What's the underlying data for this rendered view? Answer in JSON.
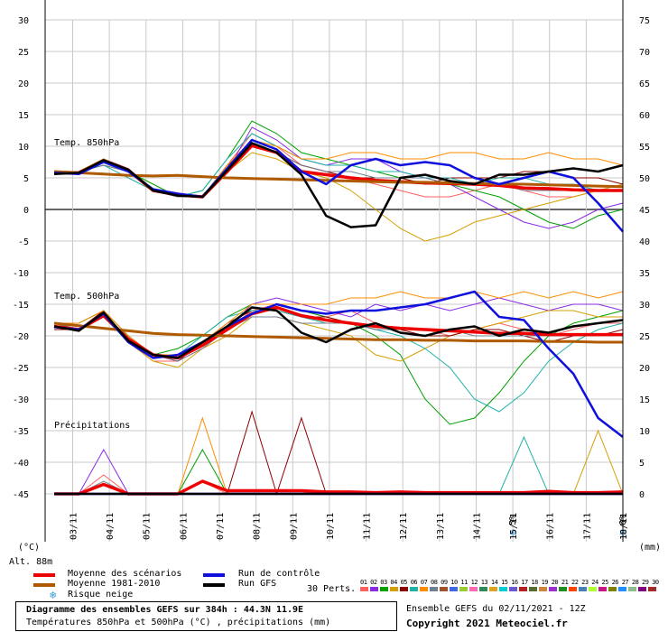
{
  "chart_data": {
    "type": "line",
    "title": "Diagramme des ensembles GEFS sur 384h : 44.3N 11.9E",
    "subtitle": "Températures 850hPa et 500hPa (°C) , précipitations (mm)",
    "left_axis_unit": "(°C)",
    "right_axis_unit": "(mm)",
    "altitude": "Alt. 88m",
    "ylim_left": [
      -45,
      30
    ],
    "ylim_right": [
      0,
      75
    ],
    "left_ticks": [
      "30",
      "25",
      "20",
      "15",
      "10",
      "5",
      "0",
      "-5",
      "-10",
      "-15",
      "-20",
      "-25",
      "-30",
      "-35",
      "-40",
      "-45"
    ],
    "right_ticks": [
      "75",
      "70",
      "65",
      "60",
      "55",
      "50",
      "45",
      "40",
      "35",
      "30",
      "25",
      "20",
      "15",
      "10",
      "5",
      "0"
    ],
    "x_labels": [
      "03/11",
      "04/11",
      "05/11",
      "06/11",
      "07/11",
      "08/11",
      "09/11",
      "10/11",
      "11/11",
      "12/11",
      "13/11",
      "14/11",
      "15/11",
      "16/11",
      "17/11",
      "18/11"
    ],
    "panel_labels": {
      "t850": "Temp. 850hPa",
      "t500": "Temp. 500hPa",
      "precip": "Précipitations"
    },
    "snow_markers": [
      {
        "label": "5%",
        "date": "15/11"
      },
      {
        "label": "6%",
        "date": "18/11"
      }
    ],
    "series": [
      {
        "name": "Moyenne des scénarios",
        "color": "#ee0000",
        "panel": "t850",
        "y": [
          5.9,
          5.8,
          7.6,
          6.2,
          3.0,
          2.3,
          2.0,
          6.0,
          10.1,
          9.0,
          6.0,
          5.5,
          5.0,
          4.6,
          4.4,
          4.2,
          4.1,
          4.0,
          3.8,
          3.4,
          3.3,
          3.1,
          3.0,
          3.0
        ]
      },
      {
        "name": "Moyenne 1981-2010",
        "color": "#b05a00",
        "panel": "t850",
        "y": [
          6.0,
          5.8,
          5.6,
          5.4,
          5.3,
          5.4,
          5.2,
          5.0,
          4.9,
          4.8,
          4.7,
          4.6,
          4.5,
          4.4,
          4.3,
          4.3,
          4.2,
          4.1,
          4.0,
          4.0,
          3.9,
          3.8,
          3.7,
          3.6
        ]
      },
      {
        "name": "Run de contrôle",
        "color": "#1010dd",
        "panel": "t850",
        "y": [
          5.8,
          5.6,
          7.5,
          6.0,
          3.2,
          2.5,
          2.0,
          6.5,
          11.0,
          9.5,
          6.0,
          4.0,
          7.0,
          8.0,
          7.0,
          7.5,
          7.0,
          5.0,
          4.0,
          5.0,
          6.0,
          5.0,
          1.0,
          -3.5
        ]
      },
      {
        "name": "Run GFS",
        "color": "#000000",
        "panel": "t850",
        "y": [
          5.6,
          5.8,
          7.8,
          6.3,
          3.0,
          2.2,
          2.0,
          6.2,
          10.5,
          9.0,
          5.5,
          -1.0,
          -2.8,
          -2.5,
          5.0,
          5.5,
          4.5,
          4.0,
          5.5,
          5.5,
          6.0,
          6.5,
          6.0,
          7.0
        ]
      },
      {
        "name": "Moyenne des scénarios",
        "color": "#ee0000",
        "panel": "t500",
        "y": [
          -18.5,
          -19.0,
          -16.8,
          -20.5,
          -23.0,
          -23.5,
          -21.5,
          -19.0,
          -16.5,
          -15.5,
          -16.8,
          -17.5,
          -18.0,
          -18.5,
          -18.8,
          -19.0,
          -19.2,
          -19.4,
          -19.6,
          -19.6,
          -19.8,
          -19.8,
          -19.8,
          -19.8
        ]
      },
      {
        "name": "Moyenne 1981-2010",
        "color": "#b05a00",
        "panel": "t500",
        "y": [
          -18.0,
          -18.4,
          -18.8,
          -19.2,
          -19.6,
          -19.8,
          -19.9,
          -20.0,
          -20.1,
          -20.2,
          -20.3,
          -20.4,
          -20.5,
          -20.6,
          -20.6,
          -20.7,
          -20.7,
          -20.8,
          -20.8,
          -20.8,
          -20.9,
          -20.9,
          -21.0,
          -21.0
        ]
      },
      {
        "name": "Run de contrôle",
        "color": "#1010dd",
        "panel": "t500",
        "y": [
          -18.6,
          -19.0,
          -16.5,
          -21.0,
          -23.5,
          -23.0,
          -21.0,
          -18.5,
          -16.5,
          -15.0,
          -16.0,
          -16.5,
          -16.0,
          -16.0,
          -15.5,
          -15.0,
          -14.0,
          -13.0,
          -17.0,
          -17.5,
          -22.0,
          -26.0,
          -33.0,
          -36.0
        ]
      },
      {
        "name": "Run GFS",
        "color": "#000000",
        "panel": "t500",
        "y": [
          -18.5,
          -19.2,
          -16.3,
          -20.8,
          -23.0,
          -23.5,
          -21.0,
          -18.5,
          -15.5,
          -16.0,
          -19.5,
          -21.0,
          -19.0,
          -18.0,
          -19.5,
          -20.0,
          -19.0,
          -18.5,
          -20.0,
          -19.0,
          -19.5,
          -18.5,
          -18.0,
          -17.5
        ]
      },
      {
        "name": "Moyenne des scénarios",
        "color": "#ee0000",
        "panel": "precip",
        "y": [
          0,
          0,
          1.5,
          0,
          0,
          0,
          2.0,
          0.5,
          0.5,
          0.5,
          0.5,
          0.3,
          0.3,
          0.2,
          0.3,
          0.2,
          0.2,
          0.2,
          0.2,
          0.2,
          0.4,
          0.2,
          0.2,
          0.3
        ]
      },
      {
        "name": "Run de contrôle",
        "color": "#1010dd",
        "panel": "precip",
        "y": [
          0,
          0,
          0,
          0,
          0,
          0,
          0,
          0,
          0,
          0,
          0,
          0,
          0,
          0,
          0,
          0,
          0,
          0,
          0,
          0,
          0,
          0,
          0,
          0
        ]
      },
      {
        "name": "Run GFS",
        "color": "#000000",
        "panel": "precip",
        "y": [
          0,
          0,
          0,
          0,
          0,
          0,
          0,
          0,
          0,
          0,
          0,
          0,
          0,
          0,
          0,
          0,
          0,
          0,
          0,
          0,
          0,
          0,
          0,
          0
        ]
      }
    ],
    "perturbation_members": [
      {
        "color": "#ff6060",
        "t850": [
          5.7,
          6,
          8,
          6.5,
          3,
          2,
          2,
          7,
          12,
          10,
          7,
          6,
          5,
          4,
          3,
          2,
          2,
          3,
          4,
          3,
          2,
          2,
          3,
          3
        ],
        "t500": [
          -18,
          -19,
          -16,
          -21,
          -24,
          -24,
          -22,
          -19,
          -16,
          -15,
          -16,
          -17,
          -16,
          -18,
          -19,
          -19,
          -20,
          -19,
          -18,
          -19,
          -20,
          -19,
          -18,
          -18
        ],
        "p": [
          0,
          0,
          3,
          0,
          0,
          0,
          2,
          0,
          0,
          0,
          0,
          0,
          0,
          0,
          0,
          0,
          0,
          0,
          0,
          0,
          0,
          0,
          0,
          0
        ]
      },
      {
        "color": "#8a2be2",
        "t850": [
          5.5,
          6,
          7,
          6,
          3,
          2,
          2,
          6,
          13,
          11,
          8,
          7,
          8,
          8,
          6,
          5,
          4,
          2,
          0,
          -2,
          -3,
          -2,
          0,
          1
        ],
        "t500": [
          -19,
          -19,
          -17,
          -21,
          -23,
          -24,
          -21,
          -19,
          -15,
          -14,
          -15,
          -16,
          -17,
          -15,
          -16,
          -15,
          -16,
          -15,
          -14,
          -15,
          -16,
          -15,
          -15,
          -16
        ],
        "p": [
          0,
          0,
          7,
          0,
          0,
          0,
          0,
          0,
          0,
          0,
          0,
          0,
          0,
          0,
          0,
          0,
          0,
          0,
          0,
          0,
          0,
          0,
          0,
          0
        ]
      },
      {
        "color": "#00a000",
        "t850": [
          6,
          6,
          8,
          6,
          4,
          2,
          3,
          8,
          14,
          12,
          9,
          8,
          7,
          6,
          5,
          4,
          4,
          3,
          2,
          0,
          -2,
          -3,
          -1,
          0
        ],
        "t500": [
          -18,
          -18,
          -16,
          -20,
          -23,
          -22,
          -20,
          -17,
          -15,
          -15,
          -16,
          -17,
          -18,
          -20,
          -23,
          -30,
          -34,
          -33,
          -29,
          -24,
          -20,
          -18,
          -17,
          -16
        ],
        "p": [
          0,
          0,
          0,
          0,
          0,
          0,
          7,
          0,
          0,
          0,
          0,
          0,
          0,
          0,
          0,
          0,
          0,
          0,
          0,
          0,
          0,
          0,
          0,
          0
        ]
      },
      {
        "color": "#d4a000",
        "t850": [
          6,
          6,
          7,
          6,
          3,
          2,
          2,
          6,
          9,
          8,
          6,
          5,
          3,
          0,
          -3,
          -5,
          -4,
          -2,
          -1,
          0,
          1,
          2,
          3,
          4
        ],
        "t500": [
          -18,
          -19,
          -17,
          -21,
          -24,
          -25,
          -22,
          -20,
          -17,
          -17,
          -18,
          -19,
          -20,
          -23,
          -24,
          -22,
          -20,
          -19,
          -18,
          -17,
          -16,
          -16,
          -17,
          -17
        ],
        "p": [
          0,
          0,
          0,
          0,
          0,
          0,
          0,
          0,
          0,
          0,
          0,
          0,
          0,
          0,
          0,
          0,
          0,
          0,
          0,
          0,
          0,
          0,
          10,
          0
        ]
      },
      {
        "color": "#8b0000",
        "t850": [
          5.8,
          6,
          8,
          6,
          3,
          2,
          2,
          7,
          10,
          9,
          7,
          6,
          5,
          5,
          5,
          4,
          5,
          5,
          5,
          6,
          6,
          5,
          5,
          4
        ],
        "t500": [
          -19,
          -19,
          -16,
          -21,
          -23,
          -24,
          -21,
          -18,
          -16,
          -16,
          -17,
          -17,
          -18,
          -19,
          -19,
          -20,
          -20,
          -19,
          -19,
          -20,
          -21,
          -20,
          -20,
          -19
        ],
        "p": [
          0,
          0,
          0,
          0,
          0,
          0,
          0,
          0,
          13,
          0,
          12,
          0,
          0,
          0,
          0,
          0,
          0,
          0,
          0,
          0,
          0,
          0,
          0,
          0
        ]
      },
      {
        "color": "#20b2aa",
        "t850": [
          5.9,
          6,
          7,
          5,
          3,
          2,
          3,
          8,
          12,
          10,
          8,
          7,
          7,
          6,
          6,
          5,
          5,
          4,
          5,
          5,
          4,
          4,
          3,
          3
        ],
        "t500": [
          -18,
          -19,
          -17,
          -20,
          -23,
          -23,
          -20,
          -17,
          -16,
          -16,
          -17,
          -18,
          -18,
          -19,
          -20,
          -22,
          -25,
          -30,
          -32,
          -29,
          -24,
          -21,
          -19,
          -18
        ],
        "p": [
          0,
          0,
          0,
          0,
          0,
          0,
          0,
          0,
          0,
          0,
          0,
          0,
          0,
          0,
          0,
          0,
          0,
          0,
          0,
          9,
          0,
          0,
          0,
          0
        ]
      },
      {
        "color": "#ff8c00",
        "t850": [
          6,
          6,
          8,
          6,
          3,
          2,
          2,
          7,
          11,
          10,
          8,
          8,
          9,
          9,
          8,
          8,
          9,
          9,
          8,
          8,
          9,
          8,
          8,
          7
        ],
        "t500": [
          -18,
          -18,
          -16,
          -20,
          -23,
          -23,
          -21,
          -18,
          -15,
          -15,
          -15,
          -15,
          -14,
          -14,
          -13,
          -14,
          -14,
          -13,
          -14,
          -13,
          -14,
          -13,
          -14,
          -13
        ],
        "p": [
          0,
          0,
          0,
          0,
          0,
          0,
          12,
          0,
          0,
          0,
          0,
          0,
          0,
          0,
          0,
          0,
          0,
          0,
          0,
          0,
          0,
          0,
          0,
          0
        ]
      },
      {
        "color": "#708090",
        "t850": [
          5.7,
          6,
          7,
          6,
          3,
          2,
          2,
          6,
          10,
          9,
          7,
          6,
          6,
          5,
          5,
          5,
          4,
          4,
          4,
          3,
          3,
          3,
          3,
          3
        ],
        "t500": [
          -18,
          -19,
          -17,
          -21,
          -23,
          -24,
          -22,
          -19,
          -17,
          -17,
          -18,
          -18,
          -18,
          -19,
          -19,
          -19,
          -19,
          -20,
          -20,
          -20,
          -20,
          -20,
          -20,
          -20
        ],
        "p": [
          0,
          0,
          2,
          0,
          0,
          0,
          0,
          0,
          0,
          0,
          0,
          0,
          0,
          0,
          0,
          0,
          0,
          0,
          0,
          0,
          0,
          0,
          0,
          0
        ]
      }
    ]
  },
  "legend": {
    "items": [
      {
        "label": "Moyenne des scénarios",
        "color": "#ee0000"
      },
      {
        "label": "Moyenne 1981-2010",
        "color": "#b05a00"
      },
      {
        "label": "Run de contrôle",
        "color": "#1010dd"
      },
      {
        "label": "Run GFS",
        "color": "#000000"
      }
    ],
    "snow_label": "Risque neige",
    "perts_label": "30 Perts.",
    "pert_numbers": "01 02 03 04 05 06 07 08 09 10 11 12 13 14 15 16 17 18 19 20 21 22 23 24 25 26 27 28 29 30",
    "pert_colors": [
      "#ff6060",
      "#8a2be2",
      "#00a000",
      "#d4a000",
      "#8b0000",
      "#20b2aa",
      "#ff8c00",
      "#708090",
      "#a0522d",
      "#4169e1",
      "#9acd32",
      "#ff69b4",
      "#2e8b57",
      "#daa520",
      "#00ced1",
      "#6a5acd",
      "#b22222",
      "#556b2f",
      "#cd853f",
      "#9932cc",
      "#228b22",
      "#ff4500",
      "#4682b4",
      "#adff2f",
      "#c71585",
      "#808000",
      "#1e90ff",
      "#8fbc8f",
      "#800080",
      "#a52a2a"
    ]
  },
  "footer": {
    "title": "Diagramme des ensembles GEFS sur 384h : 44.3N 11.9E",
    "subtitle": "Températures 850hPa et 500hPa (°C) , précipitations (mm)",
    "run": "Ensemble GEFS du 02/11/2021 - 12Z",
    "copyright": "Copyright 2021 Meteociel.fr"
  }
}
